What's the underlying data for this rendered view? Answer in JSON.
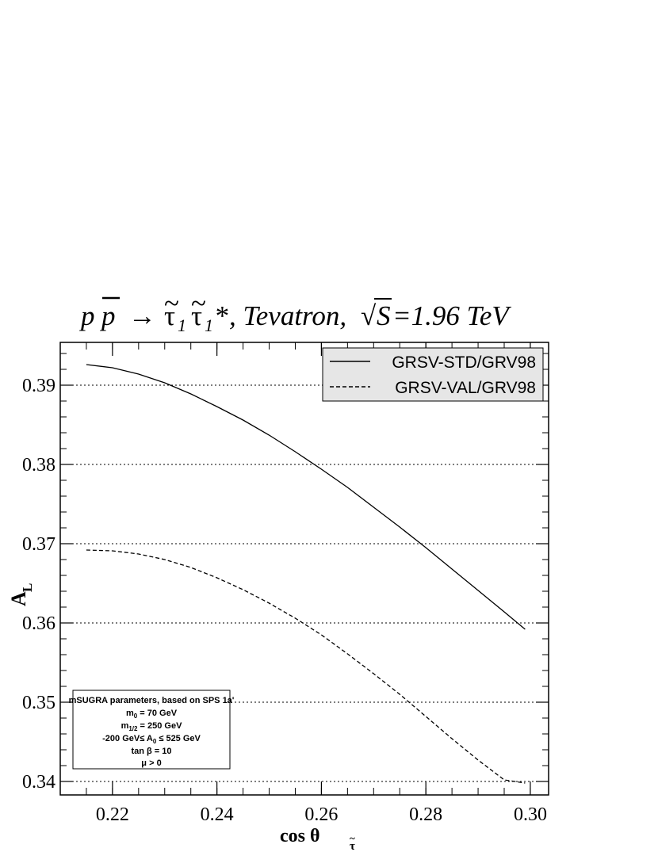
{
  "chart_data": {
    "type": "line",
    "title": {
      "p": "p",
      "pbar": "p",
      "arrow": "→",
      "tau": "τ",
      "tilde": "~",
      "sub1": "1",
      "star": "*",
      "rest": ", Tevatron, ",
      "sqrt_sign": "√",
      "S": "S",
      "energy": "=1.96 TeV"
    },
    "xlabel": {
      "main": "cos θ",
      "sub": "τ",
      "tilde": "~"
    },
    "ylabel": {
      "main": "A",
      "sub": "L"
    },
    "xlim": [
      0.21,
      0.3035
    ],
    "ylim": [
      0.3383,
      0.3954
    ],
    "x_ticks": [
      0.22,
      0.24,
      0.26,
      0.28,
      0.3
    ],
    "x_tick_labels": [
      "0.22",
      "0.24",
      "0.26",
      "0.28",
      "0.30"
    ],
    "y_ticks": [
      0.34,
      0.35,
      0.36,
      0.37,
      0.38,
      0.39
    ],
    "y_tick_labels": [
      "0.34",
      "0.35",
      "0.36",
      "0.37",
      "0.38",
      "0.39"
    ],
    "grid": "horizontal-dotted",
    "legend_position": "top-right",
    "series": [
      {
        "name": "GRSV-STD/GRV98",
        "style": "solid",
        "x": [
          0.215,
          0.22,
          0.225,
          0.23,
          0.235,
          0.24,
          0.245,
          0.25,
          0.255,
          0.26,
          0.265,
          0.27,
          0.275,
          0.28,
          0.285,
          0.29,
          0.295,
          0.299
        ],
        "values": [
          0.3926,
          0.3922,
          0.3914,
          0.3903,
          0.3889,
          0.3873,
          0.3856,
          0.3837,
          0.3816,
          0.3794,
          0.3771,
          0.3746,
          0.3721,
          0.3695,
          0.3668,
          0.3641,
          0.3614,
          0.3592
        ]
      },
      {
        "name": "GRSV-VAL/GRV98",
        "style": "dashed",
        "x": [
          0.215,
          0.22,
          0.225,
          0.23,
          0.235,
          0.24,
          0.245,
          0.25,
          0.255,
          0.26,
          0.265,
          0.27,
          0.275,
          0.28,
          0.285,
          0.29,
          0.295,
          0.299
        ],
        "values": [
          0.3692,
          0.3691,
          0.3687,
          0.368,
          0.367,
          0.3657,
          0.3642,
          0.3625,
          0.3606,
          0.3585,
          0.3561,
          0.3536,
          0.351,
          0.3482,
          0.3454,
          0.3427,
          0.3402,
          0.3398
        ]
      }
    ],
    "annotation": {
      "line1": "mSUGRA parameters, based on SPS 1a'",
      "line2": {
        "m": "m",
        "sub": "0",
        "rest": " = 70 GeV"
      },
      "line3": {
        "m": "m",
        "sub": "1/2",
        "rest": " = 250 GeV"
      },
      "line4": {
        "pre": "-200 GeV≤ A",
        "sub": "0",
        "rest": " ≤ 525 GeV"
      },
      "line5": "tan β = 10",
      "line6": "μ > 0"
    }
  }
}
